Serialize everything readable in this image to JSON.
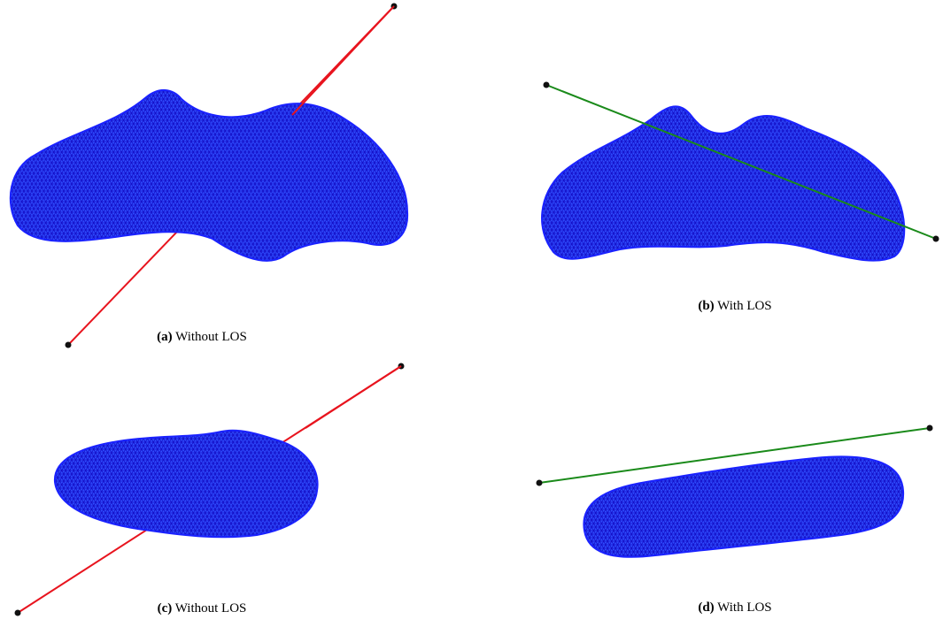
{
  "subfigures": [
    {
      "label": "(a)",
      "caption": "Without LOS"
    },
    {
      "label": "(b)",
      "caption": "With LOS"
    },
    {
      "label": "(c)",
      "caption": "Without LOS"
    },
    {
      "label": "(d)",
      "caption": "With LOS"
    }
  ]
}
